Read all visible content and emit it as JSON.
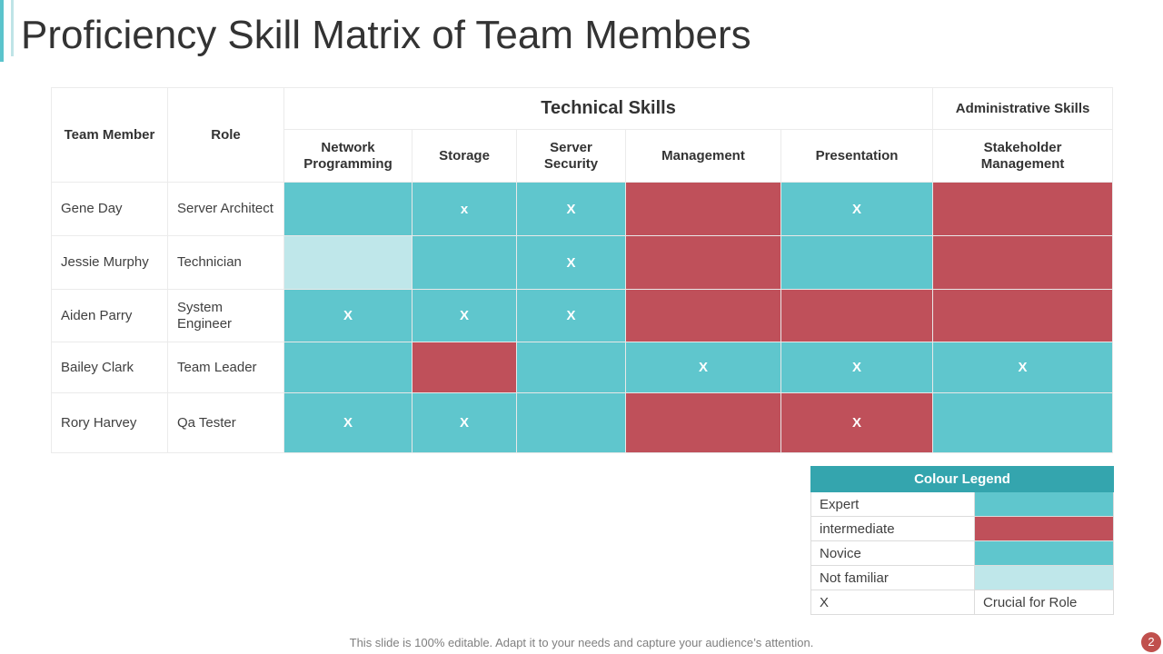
{
  "title": "Proficiency Skill Matrix of Team Members",
  "table": {
    "headers": {
      "member": "Team Member",
      "role": "Role",
      "technical_group": "Technical Skills",
      "admin_group": "Administrative  Skills",
      "skills": [
        {
          "line1": "Network",
          "line2": "Programming"
        },
        {
          "line1": "Storage",
          "line2": ""
        },
        {
          "line1": "Server",
          "line2": "Security"
        },
        {
          "line1": "Management",
          "line2": ""
        },
        {
          "line1": "Presentation",
          "line2": ""
        },
        {
          "line1": "Stakeholder",
          "line2": "Management"
        }
      ]
    },
    "rows": [
      {
        "name": "Gene Day",
        "role_line1": "Server Architect",
        "role_line2": "",
        "cells": [
          {
            "level": "expert",
            "mark": ""
          },
          {
            "level": "expert",
            "mark": "x"
          },
          {
            "level": "expert",
            "mark": "X"
          },
          {
            "level": "intermediate",
            "mark": ""
          },
          {
            "level": "expert",
            "mark": "X"
          },
          {
            "level": "intermediate",
            "mark": ""
          }
        ]
      },
      {
        "name": "Jessie Murphy",
        "role_line1": "Technician",
        "role_line2": "",
        "cells": [
          {
            "level": "notfamiliar",
            "mark": ""
          },
          {
            "level": "expert",
            "mark": ""
          },
          {
            "level": "expert",
            "mark": "X"
          },
          {
            "level": "intermediate",
            "mark": ""
          },
          {
            "level": "expert",
            "mark": ""
          },
          {
            "level": "intermediate",
            "mark": ""
          }
        ]
      },
      {
        "name": "Aiden Parry",
        "role_line1": "System",
        "role_line2": "Engineer",
        "cells": [
          {
            "level": "expert",
            "mark": "X"
          },
          {
            "level": "expert",
            "mark": "X"
          },
          {
            "level": "expert",
            "mark": "X"
          },
          {
            "level": "intermediate",
            "mark": ""
          },
          {
            "level": "intermediate",
            "mark": ""
          },
          {
            "level": "intermediate",
            "mark": ""
          }
        ]
      },
      {
        "name": "Bailey Clark",
        "role_line1": "Team Leader",
        "role_line2": "",
        "cells": [
          {
            "level": "expert",
            "mark": ""
          },
          {
            "level": "intermediate",
            "mark": ""
          },
          {
            "level": "expert",
            "mark": ""
          },
          {
            "level": "expert",
            "mark": "X"
          },
          {
            "level": "expert",
            "mark": "X"
          },
          {
            "level": "expert",
            "mark": "X"
          }
        ]
      },
      {
        "name": "Rory Harvey",
        "role_line1": "Qa Tester",
        "role_line2": "",
        "cells": [
          {
            "level": "expert",
            "mark": "X"
          },
          {
            "level": "expert",
            "mark": "X"
          },
          {
            "level": "expert",
            "mark": ""
          },
          {
            "level": "intermediate",
            "mark": ""
          },
          {
            "level": "intermediate",
            "mark": "X"
          },
          {
            "level": "expert",
            "mark": ""
          }
        ]
      }
    ]
  },
  "legend": {
    "title": "Colour Legend",
    "items": [
      {
        "label": "Expert",
        "color": "#5fc6cd",
        "text": ""
      },
      {
        "label": "intermediate",
        "color": "#bf505a",
        "text": ""
      },
      {
        "label": "Novice",
        "color": "#5fc6cd",
        "text": ""
      },
      {
        "label": "Not familiar",
        "color": "#bfe7ea",
        "text": ""
      },
      {
        "label": "X",
        "color": "#ffffff",
        "text": "Crucial for Role"
      }
    ]
  },
  "footer": "This slide is 100% editable. Adapt it to your needs and capture your audience’s attention.",
  "page_number": "2"
}
